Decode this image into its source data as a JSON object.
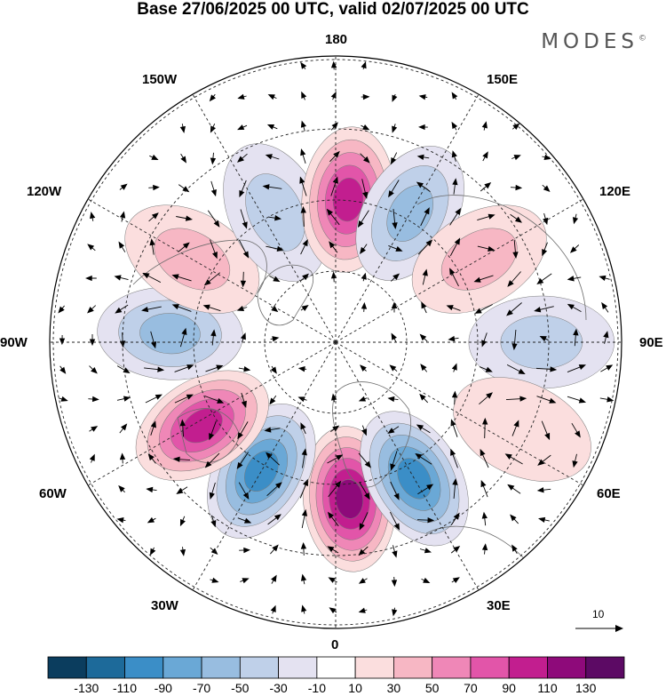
{
  "title": "Base 27/06/2025 00 UTC, valid 02/07/2025 00 UTC",
  "brand": {
    "name": "MODES",
    "mark": "©"
  },
  "longitude_labels": {
    "top": "180",
    "bottom": "0",
    "left": "90W",
    "right": "90E",
    "upper_left_1": "150W",
    "upper_left_2": "120W",
    "upper_right_1": "150E",
    "upper_right_2": "120E",
    "lower_left_1": "60W",
    "lower_left_2": "30W",
    "lower_right_1": "60E",
    "lower_right_2": "30E"
  },
  "vector_reference": {
    "value": "10"
  },
  "colorbar": {
    "ticks": [
      "-130",
      "-110",
      "-90",
      "-70",
      "-50",
      "-30",
      "-10",
      "10",
      "30",
      "50",
      "70",
      "90",
      "110",
      "130"
    ],
    "colors": [
      "#0b3d5e",
      "#1d6a9a",
      "#3b8ec7",
      "#6aa8d6",
      "#98bde0",
      "#bfd0e9",
      "#e4e2f1",
      "#ffffff",
      "#fbdede",
      "#f7b7c4",
      "#ef87b7",
      "#e255a9",
      "#c21e8f",
      "#8e0a7a",
      "#5c0a64"
    ]
  },
  "anomaly_centers": [
    {
      "lon": 5,
      "lat_ring": 0.55,
      "value": 130
    },
    {
      "lon": 30,
      "lat_ring": 0.55,
      "value": -110
    },
    {
      "lon": -30,
      "lat_ring": 0.52,
      "value": -110
    },
    {
      "lon": -58,
      "lat_ring": 0.55,
      "value": 110
    },
    {
      "lon": -93,
      "lat_ring": 0.58,
      "value": -70
    },
    {
      "lon": -120,
      "lat_ring": 0.58,
      "value": 50
    },
    {
      "lon": -155,
      "lat_ring": 0.5,
      "value": -50
    },
    {
      "lon": 175,
      "lat_ring": 0.5,
      "value": 110
    },
    {
      "lon": 150,
      "lat_ring": 0.52,
      "value": -70
    },
    {
      "lon": 120,
      "lat_ring": 0.58,
      "value": 50
    },
    {
      "lon": 90,
      "lat_ring": 0.72,
      "value": -50
    },
    {
      "lon": 65,
      "lat_ring": 0.72,
      "value": 30
    }
  ]
}
